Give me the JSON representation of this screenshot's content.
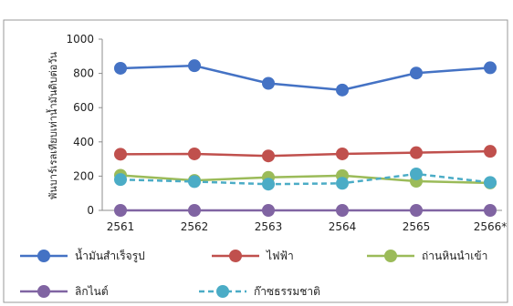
{
  "chart_data": {
    "type": "line",
    "title": "",
    "xlabel": "",
    "ylabel": "พันบาร์เรลเทียบเท่าน้ำมันดิบต่อวัน",
    "categories": [
      "2561",
      "2562",
      "2563",
      "2564",
      "2565",
      "2566*"
    ],
    "ylim": [
      0,
      1000
    ],
    "yticks": [
      "0",
      "200",
      "400",
      "600",
      "800",
      "1000"
    ],
    "grid": false,
    "legend_position": "bottom",
    "series": [
      {
        "name": "น้ำมันสำเร็จรูป",
        "values": [
          830,
          845,
          742,
          703,
          802,
          833
        ],
        "color": "#4472C4",
        "dash": false
      },
      {
        "name": "ไฟฟ้า",
        "values": [
          328,
          330,
          318,
          330,
          337,
          345
        ],
        "color": "#C0504D",
        "dash": false
      },
      {
        "name": "ถ่านหินนำเข้า",
        "values": [
          205,
          175,
          193,
          203,
          170,
          160
        ],
        "color": "#9BBB59",
        "dash": false
      },
      {
        "name": "ลิกไนต์",
        "values": [
          0,
          0,
          0,
          0,
          0,
          0
        ],
        "color": "#8064A2",
        "dash": false
      },
      {
        "name": "ก๊าซธรรมชาติ",
        "values": [
          180,
          168,
          153,
          158,
          213,
          163
        ],
        "color": "#4BACC6",
        "dash": true
      }
    ]
  }
}
